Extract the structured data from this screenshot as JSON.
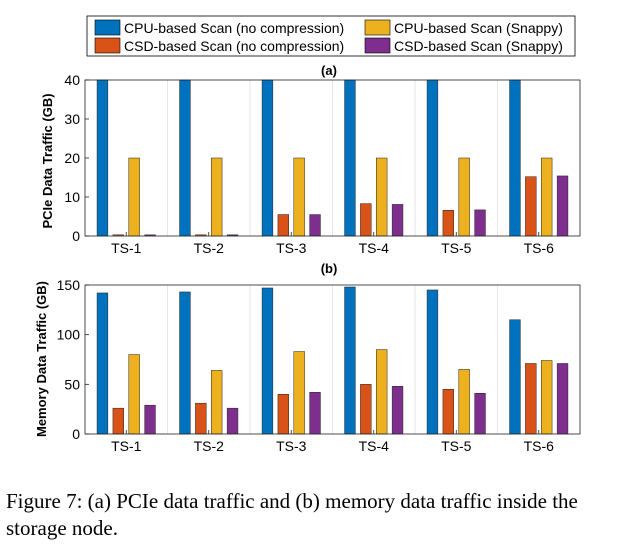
{
  "legend": {
    "items": [
      {
        "label": "CPU-based Scan (no compression)",
        "color": "#0072BD"
      },
      {
        "label": "CPU-based Scan (Snappy)",
        "color": "#EDB120"
      },
      {
        "label": "CSD-based Scan (no compression)",
        "color": "#D95319"
      },
      {
        "label": "CSD-based Scan (Snappy)",
        "color": "#7E2F8E"
      }
    ]
  },
  "chart_data": [
    {
      "type": "bar",
      "panel_label": "(a)",
      "ylabel": "PCIe Data Traffic (GB)",
      "xlabel": "",
      "ylim": [
        0,
        40
      ],
      "yticks": [
        0,
        10,
        20,
        30,
        40
      ],
      "grid": "vertical separators between groups",
      "categories": [
        "TS-1",
        "TS-2",
        "TS-3",
        "TS-4",
        "TS-5",
        "TS-6"
      ],
      "series": [
        {
          "name": "CPU-based Scan (no compression)",
          "color": "#0072BD",
          "values": [
            41,
            41,
            41,
            41,
            41,
            41
          ]
        },
        {
          "name": "CSD-based Scan (no compression)",
          "color": "#D95319",
          "values": [
            0.3,
            0.3,
            5.5,
            8.3,
            6.6,
            15.2
          ]
        },
        {
          "name": "CPU-based Scan (Snappy)",
          "color": "#EDB120",
          "values": [
            20,
            20,
            20,
            20,
            20,
            20
          ]
        },
        {
          "name": "CSD-based Scan (Snappy)",
          "color": "#7E2F8E",
          "values": [
            0.3,
            0.3,
            5.5,
            8.1,
            6.7,
            15.4
          ]
        }
      ]
    },
    {
      "type": "bar",
      "panel_label": "(b)",
      "ylabel": "Memory Data Traffic (GB)",
      "xlabel": "",
      "ylim": [
        0,
        150
      ],
      "yticks": [
        0,
        50,
        100,
        150
      ],
      "grid": "vertical separators between groups",
      "categories": [
        "TS-1",
        "TS-2",
        "TS-3",
        "TS-4",
        "TS-5",
        "TS-6"
      ],
      "series": [
        {
          "name": "CPU-based Scan (no compression)",
          "color": "#0072BD",
          "values": [
            142,
            143,
            147,
            148,
            145,
            115
          ]
        },
        {
          "name": "CSD-based Scan (no compression)",
          "color": "#D95319",
          "values": [
            26,
            31,
            40,
            50,
            45,
            71
          ]
        },
        {
          "name": "CPU-based Scan (Snappy)",
          "color": "#EDB120",
          "values": [
            80,
            64,
            83,
            85,
            65,
            74
          ]
        },
        {
          "name": "CSD-based Scan (Snappy)",
          "color": "#7E2F8E",
          "values": [
            29,
            26,
            42,
            48,
            41,
            71
          ]
        }
      ]
    }
  ],
  "caption": "Figure 7: (a) PCIe data traffic and (b) memory data traffic inside the storage node."
}
